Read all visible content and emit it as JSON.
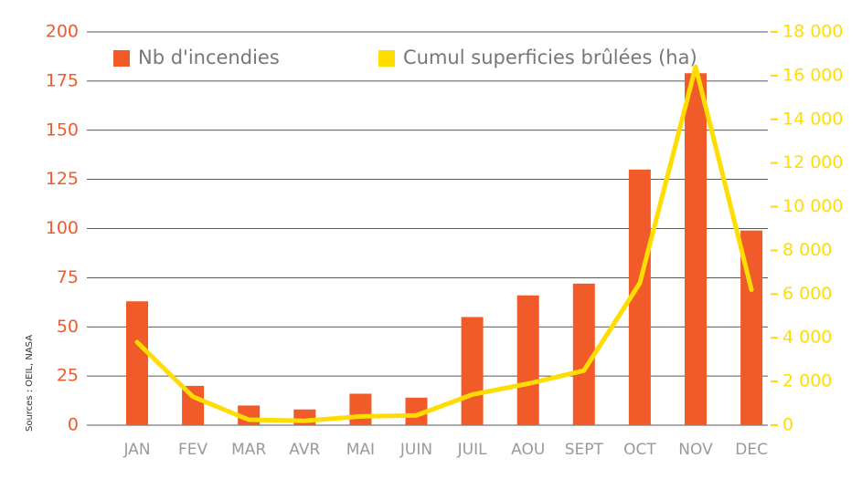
{
  "chart_data": {
    "type": "bar",
    "source": "Sources : OEIL, NASA",
    "categories": [
      "JAN",
      "FEV",
      "MAR",
      "AVR",
      "MAI",
      "JUIN",
      "JUIL",
      "AOU",
      "SEPT",
      "OCT",
      "NOV",
      "DEC"
    ],
    "series": [
      {
        "name": "Nb d'incendies",
        "type": "bar",
        "color": "#f15a29",
        "axis": "y",
        "values": [
          63,
          20,
          10,
          8,
          16,
          14,
          55,
          66,
          72,
          130,
          179,
          99
        ]
      },
      {
        "name": "Cumul superficies brûlées (ha)",
        "type": "line",
        "color": "#ffdd00",
        "axis": "y2",
        "values": [
          3800,
          1300,
          250,
          200,
          400,
          450,
          1400,
          1900,
          2500,
          6500,
          16400,
          6200
        ]
      }
    ],
    "ylim": [
      0,
      200
    ],
    "yticks": [
      0,
      25,
      50,
      75,
      100,
      125,
      150,
      175,
      200
    ],
    "y2lim": [
      0,
      18000
    ],
    "y2ticks": [
      0,
      {
        "value": 2000,
        "label": "2 000"
      },
      {
        "value": 4000,
        "label": "4 000"
      },
      {
        "value": 6000,
        "label": "6 000"
      },
      {
        "value": 8000,
        "label": "8 000"
      },
      {
        "value": 10000,
        "label": "10 000"
      },
      {
        "value": 12000,
        "label": "12 000"
      },
      {
        "value": 14000,
        "label": "14 000"
      },
      {
        "value": 16000,
        "label": "16 000"
      },
      {
        "value": 18000,
        "label": "18 000"
      }
    ],
    "grid": true,
    "legend": "top"
  }
}
